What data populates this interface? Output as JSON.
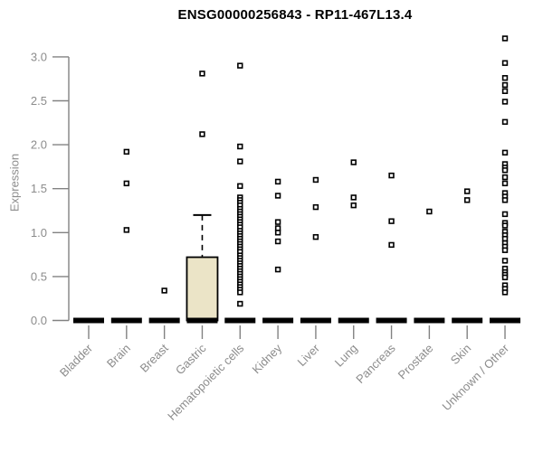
{
  "colors": {
    "axis_gray": "#828282",
    "label_gray": "#8c8c8c",
    "marker_black": "#000000",
    "box_fill": "#ebe4c7",
    "box_border": "#000000",
    "zero_bar": "#000000",
    "background": "#ffffff"
  },
  "chart_data": {
    "type": "scatter",
    "style": "strip-plot with collapsed boxplots (one open-square marker per sample, thick black bar = median at 0)",
    "title": "ENSG00000256843 - RP11-467L13.4",
    "ylabel": "Expression",
    "xlabel": "",
    "ylim": [
      0,
      3.3
    ],
    "grid": false,
    "legend": false,
    "ytick_labels": [
      "0.0",
      "0.5",
      "1.0",
      "1.5",
      "2.0",
      "2.5",
      "3.0"
    ],
    "ytick_values": [
      0.0,
      0.5,
      1.0,
      1.5,
      2.0,
      2.5,
      3.0
    ],
    "categories": [
      "Bladder",
      "Brain",
      "Breast",
      "Gastric",
      "Hematopoietic cells",
      "Kidney",
      "Liver",
      "Lung",
      "Pancreas",
      "Prostate",
      "Skin",
      "Unknown / Other"
    ],
    "groups": [
      {
        "label": "Bladder",
        "zero_bar": true,
        "points": []
      },
      {
        "label": "Brain",
        "zero_bar": true,
        "points": [
          1.92,
          1.56,
          1.03
        ]
      },
      {
        "label": "Breast",
        "zero_bar": true,
        "points": [
          0.34
        ]
      },
      {
        "label": "Gastric",
        "zero_bar": true,
        "points": [
          2.81,
          2.12
        ],
        "box": {
          "q1": 0.0,
          "median": 0.0,
          "q3": 0.72,
          "whisker_high": 1.2
        }
      },
      {
        "label": "Hematopoietic cells",
        "zero_bar": true,
        "points": [
          2.9,
          1.98,
          1.81,
          1.53,
          1.4,
          1.37,
          1.34,
          1.31,
          1.27,
          1.24,
          1.21,
          1.18,
          1.15,
          1.12,
          1.09,
          1.06,
          1.02,
          0.99,
          0.96,
          0.93,
          0.9,
          0.87,
          0.84,
          0.81,
          0.78,
          0.74,
          0.71,
          0.68,
          0.65,
          0.62,
          0.59,
          0.56,
          0.53,
          0.5,
          0.47,
          0.44,
          0.41,
          0.38,
          0.35,
          0.32,
          0.19
        ]
      },
      {
        "label": "Kidney",
        "zero_bar": true,
        "points": [
          1.58,
          1.42,
          1.12,
          1.05,
          1.0,
          0.9,
          0.58
        ]
      },
      {
        "label": "Liver",
        "zero_bar": true,
        "points": [
          1.6,
          1.29,
          0.95
        ]
      },
      {
        "label": "Lung",
        "zero_bar": true,
        "points": [
          1.8,
          1.4,
          1.31
        ]
      },
      {
        "label": "Pancreas",
        "zero_bar": true,
        "points": [
          1.65,
          1.13,
          0.86
        ]
      },
      {
        "label": "Prostate",
        "zero_bar": true,
        "points": [
          1.24
        ]
      },
      {
        "label": "Skin",
        "zero_bar": true,
        "points": [
          1.47,
          1.37
        ]
      },
      {
        "label": "Unknown / Other",
        "zero_bar": true,
        "points": [
          3.21,
          2.93,
          2.76,
          2.68,
          2.61,
          2.49,
          2.26,
          1.91,
          1.78,
          1.74,
          1.71,
          1.63,
          1.56,
          1.45,
          1.41,
          1.37,
          1.21,
          1.11,
          1.08,
          1.01,
          0.97,
          0.93,
          0.88,
          0.84,
          0.8,
          0.68,
          0.59,
          0.55,
          0.52,
          0.49,
          0.4,
          0.36,
          0.32
        ]
      }
    ]
  }
}
